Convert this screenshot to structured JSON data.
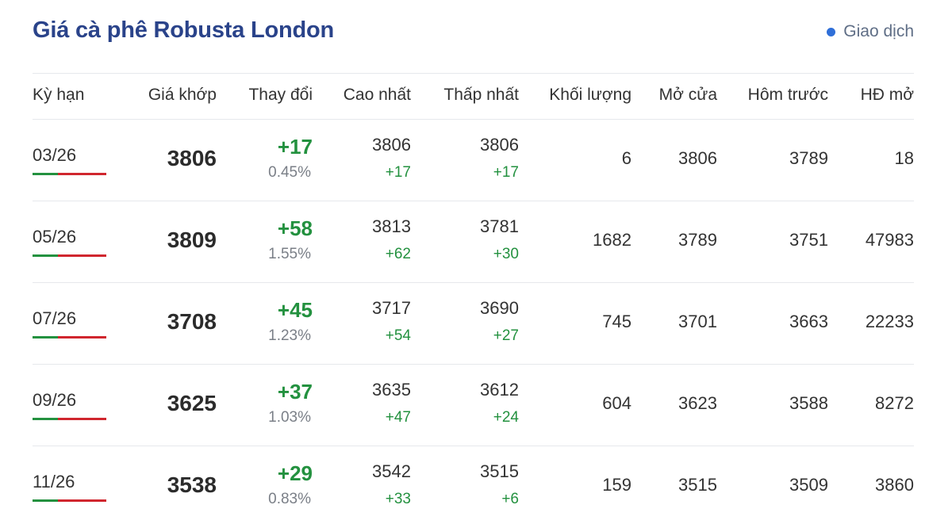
{
  "header": {
    "title": "Giá cà phê Robusta London",
    "status_label": "Giao dịch",
    "status_color": "#2f6fd8"
  },
  "columns": [
    "Kỳ hạn",
    "Giá khớp",
    "Thay đổi",
    "Cao nhất",
    "Thấp nhất",
    "Khối lượng",
    "Mở cửa",
    "Hôm trước",
    "HĐ mở"
  ],
  "rows": [
    {
      "term": "03/26",
      "price": "3806",
      "change": "+17",
      "change_pct": "0.45%",
      "high": "3806",
      "high_delta": "+17",
      "low": "3806",
      "low_delta": "+17",
      "volume": "6",
      "open": "3806",
      "prev": "3789",
      "open_interest": "18"
    },
    {
      "term": "05/26",
      "price": "3809",
      "change": "+58",
      "change_pct": "1.55%",
      "high": "3813",
      "high_delta": "+62",
      "low": "3781",
      "low_delta": "+30",
      "volume": "1682",
      "open": "3789",
      "prev": "3751",
      "open_interest": "47983"
    },
    {
      "term": "07/26",
      "price": "3708",
      "change": "+45",
      "change_pct": "1.23%",
      "high": "3717",
      "high_delta": "+54",
      "low": "3690",
      "low_delta": "+27",
      "volume": "745",
      "open": "3701",
      "prev": "3663",
      "open_interest": "22233"
    },
    {
      "term": "09/26",
      "price": "3625",
      "change": "+37",
      "change_pct": "1.03%",
      "high": "3635",
      "high_delta": "+47",
      "low": "3612",
      "low_delta": "+24",
      "volume": "604",
      "open": "3623",
      "prev": "3588",
      "open_interest": "8272"
    },
    {
      "term": "11/26",
      "price": "3538",
      "change": "+29",
      "change_pct": "0.83%",
      "high": "3542",
      "high_delta": "+33",
      "low": "3515",
      "low_delta": "+6",
      "volume": "159",
      "open": "3515",
      "prev": "3509",
      "open_interest": "3860"
    }
  ],
  "colors": {
    "title": "#2a438a",
    "positive": "#23913f",
    "negative": "#d0262e"
  }
}
